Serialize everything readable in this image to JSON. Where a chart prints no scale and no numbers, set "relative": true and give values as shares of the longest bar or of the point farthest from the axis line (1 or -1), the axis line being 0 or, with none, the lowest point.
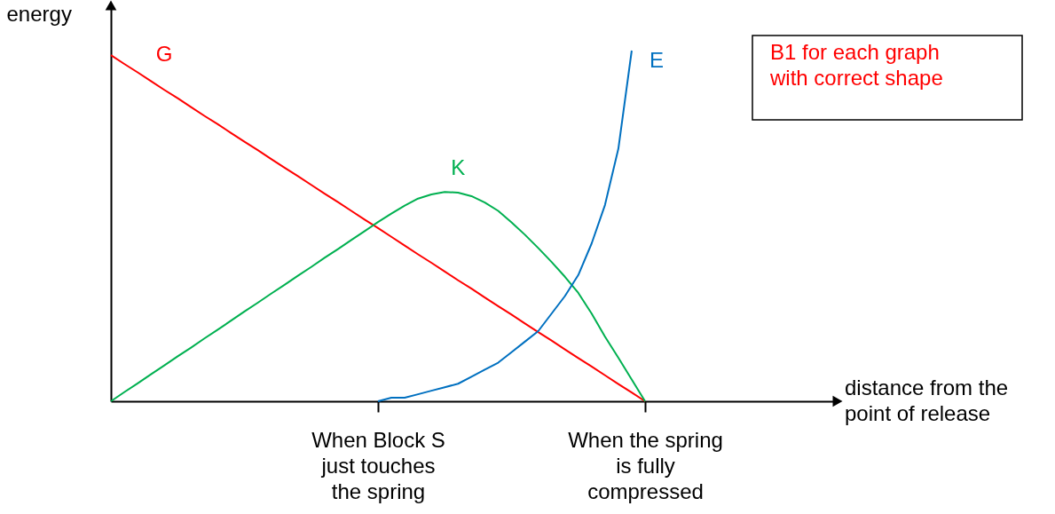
{
  "chart_data": {
    "type": "line",
    "relative": true,
    "ylabel": "energy",
    "categories": [
      null,
      null,
      null,
      null,
      null,
      null,
      null,
      null,
      null,
      null,
      null,
      null,
      null,
      null,
      null,
      null,
      null,
      null,
      null,
      null,
      "When Block S\njust touches\nthe spring",
      null,
      null,
      null,
      null,
      null,
      null,
      null,
      null,
      null,
      null,
      null,
      null,
      null,
      null,
      null,
      null,
      null,
      null,
      null,
      "When the spring\nis fully\ncompressed"
    ],
    "series": [
      {
        "name": "G",
        "color": "#ff0000",
        "values": [
          0.987,
          0.962,
          0.938,
          0.913,
          0.888,
          0.864,
          0.839,
          0.814,
          0.79,
          0.765,
          0.74,
          0.716,
          0.691,
          0.666,
          0.642,
          0.617,
          0.592,
          0.568,
          0.543,
          0.518,
          0.494,
          0.469,
          0.444,
          0.419,
          0.395,
          0.37,
          0.345,
          0.321,
          0.296,
          0.271,
          0.247,
          0.222,
          0.197,
          0.173,
          0.148,
          0.123,
          0.099,
          0.074,
          0.049,
          0.025,
          0
        ]
      },
      {
        "name": "K",
        "color": "#00b050",
        "values": [
          0,
          0.026,
          0.051,
          0.077,
          0.102,
          0.128,
          0.153,
          0.179,
          0.204,
          0.23,
          0.256,
          0.281,
          0.307,
          0.332,
          0.358,
          0.383,
          0.409,
          0.434,
          0.46,
          0.485,
          0.511,
          0.535,
          0.558,
          0.578,
          0.59,
          0.597,
          0.595,
          0.585,
          0.567,
          0.543,
          0.51,
          0.475,
          0.437,
          0.397,
          0.355,
          0.309,
          0.25,
          0.184,
          0.124,
          0.062,
          0
        ]
      },
      {
        "name": "E",
        "color": "#0070c0",
        "values": [
          null,
          null,
          null,
          null,
          null,
          null,
          null,
          null,
          null,
          null,
          null,
          null,
          null,
          null,
          null,
          null,
          null,
          null,
          null,
          null,
          0,
          0.01,
          0.01,
          0.02,
          0.03,
          0.04,
          0.05,
          0.07,
          0.09,
          0.11,
          0.14,
          0.17,
          0.2,
          0.25,
          0.3,
          0.36,
          0.45,
          0.56,
          0.72,
          1.0,
          null
        ]
      }
    ],
    "annotations": [
      "distance from the\npoint of release",
      "B1 for each graph\nwith correct shape"
    ],
    "marker": "none",
    "line_style": "solid"
  }
}
